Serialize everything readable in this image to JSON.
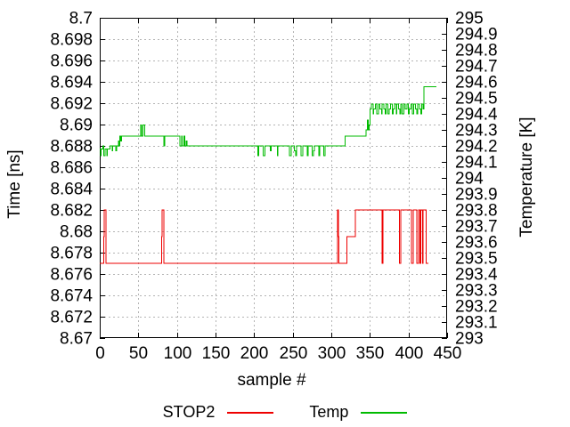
{
  "background": "#ffffff",
  "chart_data": {
    "type": "line",
    "title": "",
    "xlabel": "sample #",
    "ylabel_left": "Time [ns]",
    "ylabel_right": "Temperature [K]",
    "x_range": [
      0,
      450
    ],
    "x_tick_labels": [
      "0",
      "50",
      "100",
      "150",
      "200",
      "250",
      "300",
      "350",
      "400",
      "450"
    ],
    "y_left_range": [
      8.67,
      8.7
    ],
    "y_left_tick_labels": [
      "8.7",
      "8.698",
      "8.696",
      "8.694",
      "8.692",
      "8.69",
      "8.688",
      "8.686",
      "8.684",
      "8.682",
      "8.68",
      "8.678",
      "8.676",
      "8.674",
      "8.672",
      "8.67"
    ],
    "y_right_range": [
      293,
      295
    ],
    "y_right_tick_labels": [
      "295",
      "294.9",
      "294.8",
      "294.7",
      "294.6",
      "294.5",
      "294.4",
      "294.3",
      "294.2",
      "294.1",
      "294",
      "293.9",
      "293.8",
      "293.7",
      "293.6",
      "293.5",
      "293.4",
      "293.3",
      "293.2",
      "293.1",
      "293"
    ],
    "grid": true,
    "grid_color": "#b4b4b4",
    "border_color": "#000000",
    "legend_position": "bottom-center",
    "series": [
      {
        "name": "STOP2",
        "axis": "left",
        "color": "#ee0000",
        "points": [
          [
            0,
            8.677
          ],
          [
            5,
            8.677
          ],
          [
            5,
            8.6795
          ],
          [
            6,
            8.6795
          ],
          [
            6,
            8.682
          ],
          [
            8,
            8.682
          ],
          [
            8,
            8.677
          ],
          [
            80,
            8.677
          ],
          [
            80,
            8.6795
          ],
          [
            81,
            8.6795
          ],
          [
            81,
            8.682
          ],
          [
            83,
            8.682
          ],
          [
            83,
            8.677
          ],
          [
            308,
            8.677
          ],
          [
            308,
            8.682
          ],
          [
            309,
            8.682
          ],
          [
            309,
            8.6795
          ],
          [
            310,
            8.6795
          ],
          [
            310,
            8.677
          ],
          [
            320,
            8.677
          ],
          [
            320,
            8.6795
          ],
          [
            331,
            8.6795
          ],
          [
            331,
            8.682
          ],
          [
            366,
            8.682
          ],
          [
            366,
            8.677
          ],
          [
            367,
            8.677
          ],
          [
            367,
            8.682
          ],
          [
            388,
            8.682
          ],
          [
            388,
            8.677
          ],
          [
            390,
            8.677
          ],
          [
            390,
            8.682
          ],
          [
            404,
            8.682
          ],
          [
            404,
            8.677
          ],
          [
            406,
            8.677
          ],
          [
            406,
            8.682
          ],
          [
            411,
            8.682
          ],
          [
            411,
            8.677
          ],
          [
            413,
            8.677
          ],
          [
            413,
            8.682
          ],
          [
            415,
            8.682
          ],
          [
            415,
            8.677
          ],
          [
            416,
            8.677
          ],
          [
            416,
            8.682
          ],
          [
            418,
            8.682
          ],
          [
            418,
            8.677
          ],
          [
            419,
            8.677
          ],
          [
            419,
            8.682
          ],
          [
            423,
            8.682
          ],
          [
            423,
            8.677
          ],
          [
            426,
            8.677
          ]
        ]
      },
      {
        "name": "Temp",
        "axis": "right",
        "color": "#00bb00",
        "points": [
          [
            0,
            294.18
          ],
          [
            1,
            294.18
          ],
          [
            1,
            294.14
          ],
          [
            2,
            294.14
          ],
          [
            2,
            294.18
          ],
          [
            4,
            294.18
          ],
          [
            4,
            294.2
          ],
          [
            5,
            294.2
          ],
          [
            5,
            294.14
          ],
          [
            7,
            294.14
          ],
          [
            7,
            294.18
          ],
          [
            9,
            294.18
          ],
          [
            9,
            294.14
          ],
          [
            10,
            294.14
          ],
          [
            10,
            294.18
          ],
          [
            13,
            294.18
          ],
          [
            13,
            294.2
          ],
          [
            16,
            294.2
          ],
          [
            16,
            294.17
          ],
          [
            17,
            294.17
          ],
          [
            17,
            294.2
          ],
          [
            21,
            294.2
          ],
          [
            21,
            294.17
          ],
          [
            22,
            294.17
          ],
          [
            22,
            294.2
          ],
          [
            24,
            294.2
          ],
          [
            24,
            294.23
          ],
          [
            25,
            294.23
          ],
          [
            25,
            294.2
          ],
          [
            26,
            294.2
          ],
          [
            26,
            294.26
          ],
          [
            27,
            294.26
          ],
          [
            27,
            294.23
          ],
          [
            28,
            294.23
          ],
          [
            28,
            294.26
          ],
          [
            31,
            294.26
          ],
          [
            53,
            294.26
          ],
          [
            53,
            294.33
          ],
          [
            54,
            294.33
          ],
          [
            54,
            294.26
          ],
          [
            56,
            294.26
          ],
          [
            56,
            294.33
          ],
          [
            58,
            294.33
          ],
          [
            58,
            294.26
          ],
          [
            83,
            294.26
          ],
          [
            83,
            294.2
          ],
          [
            84,
            294.2
          ],
          [
            84,
            294.26
          ],
          [
            104,
            294.26
          ],
          [
            104,
            294.2
          ],
          [
            106,
            294.2
          ],
          [
            106,
            294.26
          ],
          [
            107,
            294.26
          ],
          [
            107,
            294.2
          ],
          [
            109,
            294.2
          ],
          [
            109,
            294.26
          ],
          [
            110,
            294.26
          ],
          [
            110,
            294.2
          ],
          [
            112,
            294.2
          ],
          [
            112,
            294.23
          ],
          [
            113,
            294.23
          ],
          [
            113,
            294.2
          ],
          [
            205,
            294.2
          ],
          [
            205,
            294.14
          ],
          [
            206,
            294.14
          ],
          [
            206,
            294.2
          ],
          [
            212,
            294.2
          ],
          [
            212,
            294.14
          ],
          [
            214,
            294.14
          ],
          [
            214,
            294.2
          ],
          [
            221,
            294.2
          ],
          [
            221,
            294.17
          ],
          [
            222,
            294.17
          ],
          [
            222,
            294.2
          ],
          [
            230,
            294.2
          ],
          [
            230,
            294.14
          ],
          [
            231,
            294.14
          ],
          [
            231,
            294.2
          ],
          [
            246,
            294.2
          ],
          [
            246,
            294.14
          ],
          [
            248,
            294.14
          ],
          [
            248,
            294.2
          ],
          [
            252,
            294.2
          ],
          [
            252,
            294.17
          ],
          [
            254,
            294.17
          ],
          [
            254,
            294.14
          ],
          [
            255,
            294.14
          ],
          [
            255,
            294.2
          ],
          [
            261,
            294.2
          ],
          [
            261,
            294.14
          ],
          [
            263,
            294.14
          ],
          [
            263,
            294.2
          ],
          [
            269,
            294.2
          ],
          [
            269,
            294.14
          ],
          [
            270,
            294.14
          ],
          [
            270,
            294.2
          ],
          [
            275,
            294.2
          ],
          [
            275,
            294.14
          ],
          [
            277,
            294.14
          ],
          [
            277,
            294.17
          ],
          [
            278,
            294.17
          ],
          [
            278,
            294.2
          ],
          [
            284,
            294.2
          ],
          [
            284,
            294.14
          ],
          [
            285,
            294.14
          ],
          [
            285,
            294.2
          ],
          [
            290,
            294.2
          ],
          [
            290,
            294.14
          ],
          [
            292,
            294.14
          ],
          [
            292,
            294.2
          ],
          [
            318,
            294.2
          ],
          [
            318,
            294.26
          ],
          [
            345,
            294.26
          ],
          [
            345,
            294.3
          ],
          [
            347,
            294.3
          ],
          [
            347,
            294.36
          ],
          [
            348,
            294.36
          ],
          [
            348,
            294.3
          ],
          [
            349,
            294.3
          ],
          [
            349,
            294.33
          ],
          [
            350,
            294.33
          ],
          [
            350,
            294.43
          ],
          [
            352,
            294.43
          ],
          [
            352,
            294.46
          ],
          [
            354,
            294.46
          ],
          [
            354,
            294.4
          ],
          [
            355,
            294.4
          ],
          [
            355,
            294.43
          ],
          [
            357,
            294.43
          ],
          [
            357,
            294.46
          ],
          [
            359,
            294.46
          ],
          [
            359,
            294.4
          ],
          [
            361,
            294.4
          ],
          [
            361,
            294.46
          ],
          [
            363,
            294.46
          ],
          [
            363,
            294.43
          ],
          [
            365,
            294.43
          ],
          [
            365,
            294.4
          ],
          [
            366,
            294.4
          ],
          [
            366,
            294.46
          ],
          [
            368,
            294.46
          ],
          [
            368,
            294.43
          ],
          [
            370,
            294.43
          ],
          [
            370,
            294.4
          ],
          [
            371,
            294.4
          ],
          [
            371,
            294.46
          ],
          [
            373,
            294.46
          ],
          [
            373,
            294.4
          ],
          [
            375,
            294.4
          ],
          [
            375,
            294.43
          ],
          [
            377,
            294.43
          ],
          [
            377,
            294.46
          ],
          [
            379,
            294.46
          ],
          [
            379,
            294.4
          ],
          [
            380,
            294.4
          ],
          [
            380,
            294.43
          ],
          [
            382,
            294.43
          ],
          [
            382,
            294.46
          ],
          [
            384,
            294.46
          ],
          [
            384,
            294.4
          ],
          [
            385,
            294.4
          ],
          [
            385,
            294.46
          ],
          [
            387,
            294.46
          ],
          [
            387,
            294.43
          ],
          [
            389,
            294.43
          ],
          [
            389,
            294.4
          ],
          [
            390,
            294.4
          ],
          [
            390,
            294.46
          ],
          [
            392,
            294.46
          ],
          [
            392,
            294.4
          ],
          [
            394,
            294.4
          ],
          [
            394,
            294.46
          ],
          [
            396,
            294.46
          ],
          [
            396,
            294.43
          ],
          [
            398,
            294.43
          ],
          [
            398,
            294.46
          ],
          [
            400,
            294.46
          ],
          [
            400,
            294.4
          ],
          [
            401,
            294.4
          ],
          [
            401,
            294.43
          ],
          [
            403,
            294.43
          ],
          [
            403,
            294.46
          ],
          [
            405,
            294.46
          ],
          [
            405,
            294.4
          ],
          [
            407,
            294.4
          ],
          [
            407,
            294.46
          ],
          [
            409,
            294.46
          ],
          [
            409,
            294.43
          ],
          [
            411,
            294.43
          ],
          [
            411,
            294.4
          ],
          [
            412,
            294.4
          ],
          [
            412,
            294.46
          ],
          [
            414,
            294.46
          ],
          [
            414,
            294.43
          ],
          [
            416,
            294.43
          ],
          [
            416,
            294.4
          ],
          [
            417,
            294.4
          ],
          [
            417,
            294.46
          ],
          [
            419,
            294.46
          ],
          [
            419,
            294.43
          ],
          [
            420,
            294.43
          ],
          [
            420,
            294.57
          ],
          [
            436,
            294.57
          ]
        ]
      }
    ]
  }
}
